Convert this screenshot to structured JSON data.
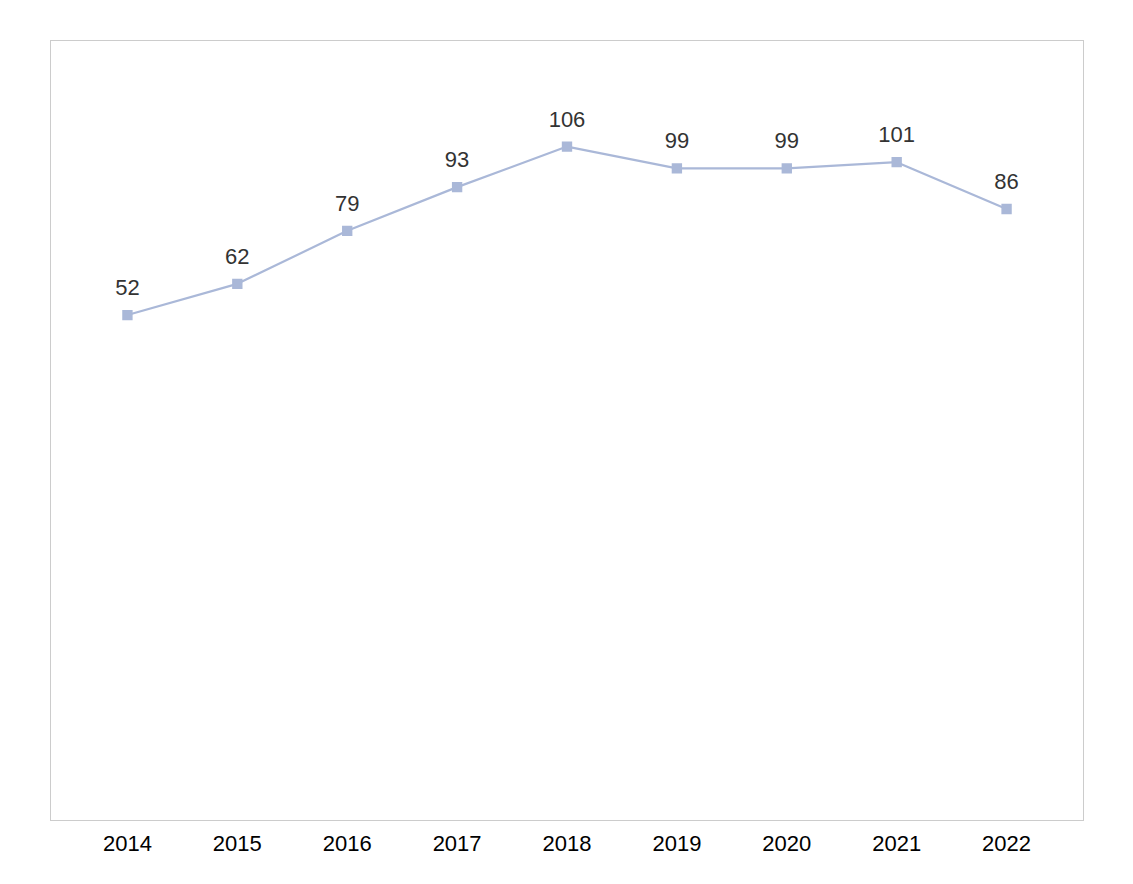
{
  "chart_data": {
    "type": "line",
    "x": [
      2014,
      2015,
      2016,
      2017,
      2018,
      2019,
      2020,
      2021,
      2022
    ],
    "values": [
      52,
      62,
      79,
      93,
      106,
      99,
      99,
      101,
      86
    ],
    "color": "#aab8d8",
    "marker": "square",
    "data_labels": true,
    "xlim": [
      2013.3,
      2022.7
    ],
    "xticks": [
      2014,
      2015,
      2016,
      2017,
      2018,
      2019,
      2020,
      2021,
      2022
    ],
    "ylim": [
      -110,
      140
    ],
    "tick_labels": "x",
    "grid": false
  }
}
